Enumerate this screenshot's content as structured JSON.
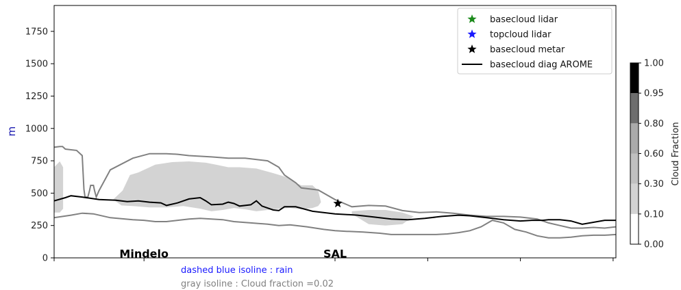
{
  "chart_data": {
    "type": "area",
    "ylim": [
      0,
      1950
    ],
    "yticks": [
      0,
      250,
      500,
      750,
      1000,
      1250,
      1500,
      1750
    ],
    "ylabel": "m",
    "x_range": [
      0,
      100
    ],
    "stations": [
      {
        "label": "Mindelo",
        "x": 16
      },
      {
        "label": "SAL",
        "x": 50
      }
    ],
    "x_tick_positions": [
      0,
      16,
      50,
      66.5,
      83,
      99.5
    ],
    "series": [
      {
        "name": "basecloud diag AROME",
        "kind": "line",
        "color": "#000000",
        "x": [
          0,
          2,
          3,
          5,
          8,
          11,
          13,
          15,
          17,
          19,
          20,
          22,
          24,
          26,
          27,
          28,
          30,
          31,
          32,
          33,
          35,
          36,
          37,
          39,
          40,
          41,
          43,
          46,
          50,
          54,
          57,
          60,
          63,
          66,
          69,
          72,
          74,
          77,
          80,
          83,
          85,
          87,
          88,
          90,
          91,
          92,
          94,
          96,
          98,
          100
        ],
        "y": [
          440,
          465,
          480,
          470,
          450,
          445,
          435,
          440,
          430,
          425,
          405,
          425,
          455,
          465,
          440,
          410,
          415,
          430,
          420,
          400,
          410,
          440,
          400,
          370,
          365,
          395,
          395,
          360,
          340,
          330,
          315,
          300,
          295,
          305,
          320,
          330,
          325,
          310,
          295,
          285,
          290,
          290,
          295,
          295,
          290,
          285,
          260,
          275,
          290,
          290
        ]
      },
      {
        "name": "basecloud metar",
        "kind": "marker",
        "marker": "star",
        "color": "#000000",
        "points": [
          {
            "x": 50.5,
            "y": 420
          }
        ]
      }
    ],
    "isolines": {
      "upper": {
        "color": "#808080",
        "x": [
          0,
          1,
          1.5,
          2,
          4,
          5,
          5.3,
          5.5,
          6,
          6.3,
          6.5,
          7,
          7.2,
          7.5,
          8,
          10,
          14,
          17,
          20,
          22,
          24,
          28,
          31,
          34,
          38,
          40,
          41,
          43,
          44,
          47,
          50,
          53,
          56,
          59,
          62,
          65,
          68,
          71,
          74,
          77,
          80,
          83,
          86,
          88,
          90,
          92,
          94,
          96,
          98,
          100
        ],
        "y": [
          855,
          860,
          860,
          840,
          830,
          790,
          530,
          470,
          470,
          520,
          560,
          560,
          520,
          470,
          520,
          680,
          770,
          805,
          805,
          800,
          790,
          780,
          770,
          770,
          750,
          700,
          640,
          580,
          540,
          525,
          450,
          395,
          405,
          400,
          365,
          350,
          355,
          345,
          330,
          320,
          320,
          315,
          300,
          270,
          250,
          230,
          230,
          235,
          230,
          240
        ]
      },
      "lower": {
        "color": "#808080",
        "x": [
          0,
          3,
          5,
          7,
          10,
          14,
          16,
          18,
          20,
          22,
          24,
          26,
          28,
          30,
          32,
          35,
          38,
          40,
          42,
          45,
          48,
          50,
          52,
          55,
          58,
          60,
          62,
          65,
          68,
          70,
          72,
          74,
          76,
          78,
          80,
          82,
          84,
          86,
          88,
          90,
          92,
          94,
          96,
          98,
          100
        ],
        "y": [
          310,
          330,
          345,
          340,
          310,
          295,
          290,
          280,
          280,
          290,
          300,
          305,
          300,
          295,
          280,
          270,
          260,
          250,
          255,
          240,
          220,
          210,
          205,
          200,
          190,
          180,
          180,
          180,
          180,
          185,
          195,
          210,
          240,
          290,
          270,
          220,
          200,
          170,
          155,
          155,
          160,
          170,
          175,
          175,
          180
        ]
      }
    },
    "cloud_fraction_shading": {
      "color": "#d3d3d3",
      "approx_range": [
        0.1,
        0.3
      ],
      "regions": [
        {
          "x": [
            10.5,
            12.2,
            13.5,
            15,
            18,
            21,
            24,
            27,
            28.8,
            31,
            33,
            36,
            39,
            42,
            43,
            44,
            46,
            47,
            47.5,
            47,
            46,
            44,
            42,
            40,
            38,
            36,
            34,
            32,
            30,
            28,
            26,
            23,
            20,
            17,
            14,
            12,
            10.5
          ],
          "y": [
            450,
            520,
            640,
            660,
            720,
            740,
            745,
            735,
            720,
            700,
            700,
            690,
            655,
            615,
            580,
            560,
            560,
            520,
            430,
            400,
            385,
            375,
            385,
            380,
            370,
            360,
            375,
            385,
            370,
            360,
            380,
            400,
            390,
            390,
            400,
            405,
            450
          ]
        },
        {
          "x": [
            43,
            44,
            45,
            45.5,
            45,
            44,
            43
          ],
          "y": [
            480,
            500,
            470,
            430,
            390,
            395,
            480
          ]
        },
        {
          "x": [
            53,
            56,
            59,
            62,
            64,
            62,
            59,
            56,
            53
          ],
          "y": [
            360,
            370,
            370,
            350,
            320,
            260,
            250,
            260,
            340
          ]
        },
        {
          "x": [
            0,
            1,
            1.6,
            1.6,
            1,
            0
          ],
          "y": [
            700,
            745,
            700,
            380,
            350,
            350
          ]
        }
      ]
    },
    "legend": {
      "placement": "top-right",
      "entries": [
        {
          "label": "basecloud lidar",
          "marker": "star",
          "color": "#1b8a1b"
        },
        {
          "label": "topcloud lidar",
          "marker": "star",
          "color": "#1a1aff"
        },
        {
          "label": "basecloud metar",
          "marker": "star",
          "color": "#000000"
        },
        {
          "label": "basecloud diag AROME",
          "marker": "line",
          "color": "#000000"
        }
      ]
    },
    "colorbar": {
      "label": "Cloud Fraction",
      "levels": [
        "0.00",
        "0.10",
        "0.30",
        "0.60",
        "0.80",
        "0.95",
        "1.00"
      ],
      "colors": [
        "#ffffff",
        "#d3d3d3",
        "#c0c0c0",
        "#aaaaaa",
        "#6e6e6e",
        "#000000"
      ]
    }
  },
  "notes": {
    "rain": {
      "text": "dashed blue isoline : rain",
      "color": "#1a1aff"
    },
    "cloud": {
      "text": "gray isoline : Cloud fraction =0.02",
      "color": "#808080"
    }
  }
}
